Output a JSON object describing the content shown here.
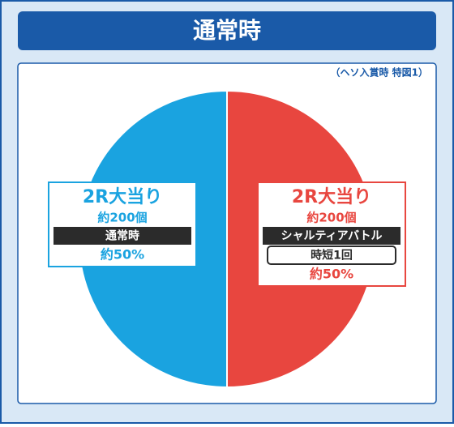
{
  "chart_data": {
    "type": "pie",
    "title": "通常時",
    "subtitle": "（ヘソ入賞時 特図1）",
    "categories": [
      "2R大当り",
      "2R大当り"
    ],
    "values": [
      50,
      50
    ],
    "value_labels": [
      "約50%",
      "約50%"
    ],
    "colors": [
      "#e8463f",
      "#1aa3e0"
    ],
    "payouts": [
      "約200個",
      "約200個"
    ],
    "modes": [
      [
        "シャルティアバトル",
        "時短1回"
      ],
      [
        "通常時"
      ]
    ]
  }
}
